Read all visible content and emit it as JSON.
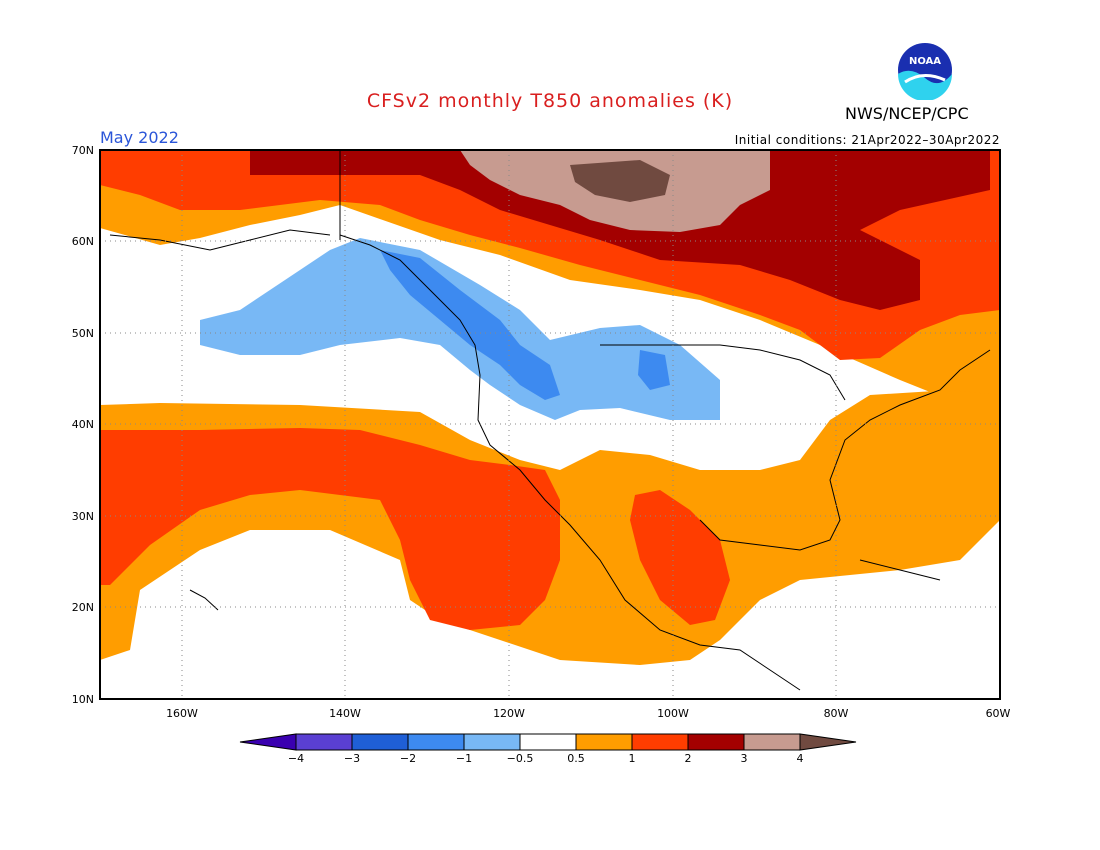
{
  "title": "CFSv2 monthly T850 anomalies (K)",
  "month_label": "May 2022",
  "initial_conditions": "Initial conditions: 21Apr2022–30Apr2022",
  "agency": "NWS/NCEP/CPC",
  "logo_text": "NOAA",
  "map": {
    "lon_range": [
      -170,
      -60
    ],
    "lat_range": [
      10,
      70
    ],
    "lat_labels": [
      "10N",
      "20N",
      "30N",
      "40N",
      "50N",
      "60N",
      "70N"
    ],
    "lon_labels": [
      "160W",
      "140W",
      "120W",
      "100W",
      "80W",
      "60W"
    ],
    "regions": [
      {
        "name": "arctic-warm",
        "level": "2-3",
        "label": "Arctic / northern Canada strong warm anomaly"
      },
      {
        "name": "beaufort-brown",
        "level": ">4",
        "label": "Beaufort Sea maximum warm anomaly"
      },
      {
        "name": "pacific-nw-cool",
        "level": "-0.5 to -2",
        "label": "Gulf of Alaska to northern Plains cool anomaly"
      },
      {
        "name": "subtropical-pacific-warm",
        "level": "1-2",
        "label": "Subtropical Pacific warm band"
      },
      {
        "name": "mexico-warm",
        "level": "1-2",
        "label": "Mexico warm anomaly"
      },
      {
        "name": "east-warm",
        "level": "0.5-1",
        "label": "Eastern US / Atlantic warm anomaly"
      }
    ]
  },
  "colorbar": {
    "ticks": [
      "−4",
      "−3",
      "−2",
      "−1",
      "−0.5",
      "0.5",
      "1",
      "2",
      "3",
      "4"
    ],
    "colors": [
      "#3a00b0",
      "#5a3fd2",
      "#1f5fd6",
      "#3d8af0",
      "#78b8f5",
      "#ffffff",
      "#ff9d00",
      "#ff3d00",
      "#a30000",
      "#c79b90",
      "#704a40"
    ]
  }
}
